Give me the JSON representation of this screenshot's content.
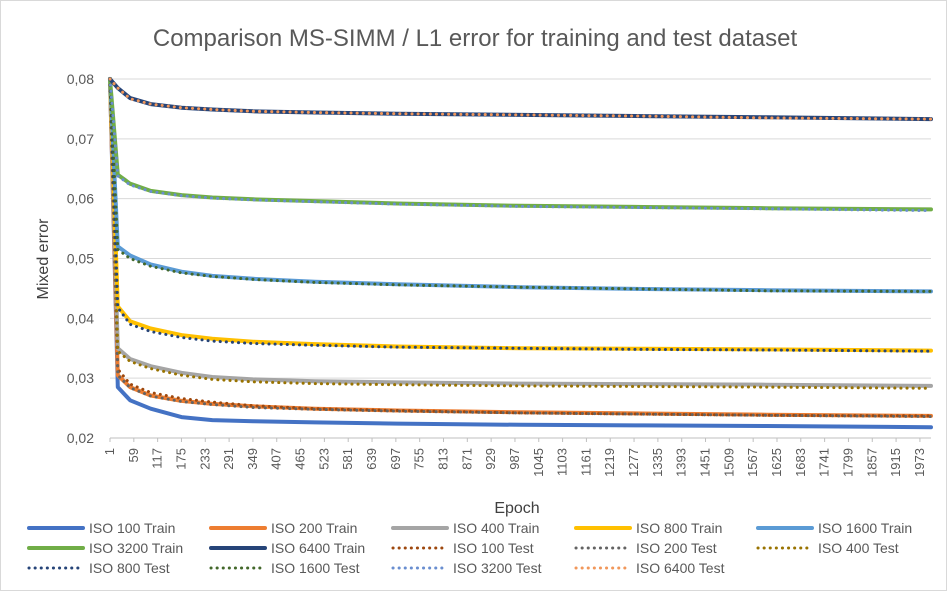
{
  "chart_data": {
    "type": "line",
    "title": "Comparison MS-SIMM / L1 error for training and test dataset",
    "xlabel": "Epoch",
    "ylabel": "Mixed error",
    "xlim": [
      1,
      2000
    ],
    "ylim": [
      0.02,
      0.08
    ],
    "y_ticks": [
      "0,02",
      "0,03",
      "0,04",
      "0,05",
      "0,06",
      "0,07",
      "0,08"
    ],
    "x_ticks": [
      "1",
      "59",
      "117",
      "175",
      "233",
      "291",
      "349",
      "407",
      "465",
      "523",
      "581",
      "639",
      "697",
      "755",
      "813",
      "871",
      "929",
      "987",
      "1045",
      "1103",
      "1161",
      "1219",
      "1277",
      "1335",
      "1393",
      "1451",
      "1509",
      "1567",
      "1625",
      "1683",
      "1741",
      "1799",
      "1857",
      "1915",
      "1973"
    ],
    "grid": "horizontal",
    "legend": "bottom",
    "series": [
      {
        "name": "ISO 100 Train",
        "color": "#4472C4",
        "style": "solid",
        "x": [
          1,
          20,
          50,
          100,
          175,
          250,
          350,
          500,
          700,
          1000,
          1300,
          1600,
          2000
        ],
        "values": [
          0.08,
          0.0285,
          0.0263,
          0.0249,
          0.0235,
          0.023,
          0.0228,
          0.0226,
          0.0224,
          0.0222,
          0.0221,
          0.022,
          0.0218
        ]
      },
      {
        "name": "ISO 200 Train",
        "color": "#ED7D31",
        "style": "solid",
        "x": [
          1,
          20,
          50,
          100,
          175,
          250,
          350,
          500,
          700,
          1000,
          1300,
          1600,
          2000
        ],
        "values": [
          0.08,
          0.0305,
          0.0285,
          0.0271,
          0.0262,
          0.0257,
          0.0253,
          0.0249,
          0.0246,
          0.0243,
          0.0241,
          0.0239,
          0.0237
        ]
      },
      {
        "name": "ISO 400 Train",
        "color": "#A5A5A5",
        "style": "solid",
        "x": [
          1,
          20,
          50,
          100,
          175,
          250,
          350,
          500,
          700,
          1000,
          1300,
          1600,
          2000
        ],
        "values": [
          0.08,
          0.035,
          0.0332,
          0.032,
          0.0309,
          0.0302,
          0.0298,
          0.0295,
          0.0293,
          0.0291,
          0.029,
          0.0289,
          0.0287
        ]
      },
      {
        "name": "ISO 800 Train",
        "color": "#FFC000",
        "style": "solid",
        "x": [
          1,
          20,
          50,
          100,
          175,
          250,
          350,
          500,
          700,
          1000,
          1300,
          1600,
          2000
        ],
        "values": [
          0.08,
          0.042,
          0.0395,
          0.0383,
          0.0372,
          0.0366,
          0.0361,
          0.0357,
          0.0353,
          0.035,
          0.0349,
          0.0348,
          0.0346
        ]
      },
      {
        "name": "ISO 1600 Train",
        "color": "#5B9BD5",
        "style": "solid",
        "x": [
          1,
          20,
          50,
          100,
          175,
          250,
          350,
          500,
          700,
          1000,
          1300,
          1600,
          2000
        ],
        "values": [
          0.08,
          0.052,
          0.0505,
          0.049,
          0.0478,
          0.0471,
          0.0466,
          0.0461,
          0.0457,
          0.0452,
          0.0449,
          0.0447,
          0.0445
        ]
      },
      {
        "name": "ISO 3200 Train",
        "color": "#70AD47",
        "style": "solid",
        "x": [
          1,
          20,
          50,
          100,
          175,
          250,
          350,
          500,
          700,
          1000,
          1300,
          1600,
          2000
        ],
        "values": [
          0.08,
          0.064,
          0.0625,
          0.0613,
          0.0606,
          0.0602,
          0.0599,
          0.0596,
          0.0592,
          0.0588,
          0.0586,
          0.0584,
          0.0582
        ]
      },
      {
        "name": "ISO 6400 Train",
        "color": "#264478",
        "style": "solid",
        "x": [
          1,
          20,
          50,
          100,
          175,
          250,
          350,
          500,
          700,
          1000,
          1300,
          1600,
          2000
        ],
        "values": [
          0.08,
          0.0785,
          0.0768,
          0.0758,
          0.0752,
          0.0749,
          0.0746,
          0.0744,
          0.0742,
          0.074,
          0.0738,
          0.0736,
          0.0733
        ]
      },
      {
        "name": "ISO 100 Test",
        "color": "#9E480E",
        "style": "dotted",
        "x": [
          1,
          20,
          50,
          100,
          175,
          250,
          350,
          500,
          700,
          1000,
          1300,
          1600,
          2000
        ],
        "values": [
          0.08,
          0.0315,
          0.029,
          0.0276,
          0.0266,
          0.026,
          0.0254,
          0.0249,
          0.0246,
          0.0242,
          0.024,
          0.0238,
          0.0237
        ]
      },
      {
        "name": "ISO 200 Test",
        "color": "#636363",
        "style": "dotted",
        "x": [
          1,
          20,
          50,
          100,
          175,
          250,
          350,
          500,
          700,
          1000,
          1300,
          1600,
          2000
        ],
        "values": [
          0.08,
          0.0305,
          0.0284,
          0.027,
          0.0261,
          0.0256,
          0.0251,
          0.0248,
          0.0245,
          0.0242,
          0.024,
          0.0238,
          0.0236
        ]
      },
      {
        "name": "ISO 400 Test",
        "color": "#997300",
        "style": "dotted",
        "x": [
          1,
          20,
          50,
          100,
          175,
          250,
          350,
          500,
          700,
          1000,
          1300,
          1600,
          2000
        ],
        "values": [
          0.08,
          0.0345,
          0.0328,
          0.0316,
          0.0305,
          0.0298,
          0.0294,
          0.0291,
          0.0289,
          0.0287,
          0.0286,
          0.0285,
          0.0283
        ]
      },
      {
        "name": "ISO 800 Test",
        "color": "#264478",
        "style": "dotted",
        "x": [
          1,
          20,
          50,
          100,
          175,
          250,
          350,
          500,
          700,
          1000,
          1300,
          1600,
          2000
        ],
        "values": [
          0.08,
          0.0418,
          0.039,
          0.0378,
          0.0368,
          0.0362,
          0.0358,
          0.0355,
          0.0352,
          0.035,
          0.0348,
          0.0347,
          0.0345
        ]
      },
      {
        "name": "ISO 1600 Test",
        "color": "#43682B",
        "style": "dotted",
        "x": [
          1,
          20,
          50,
          100,
          175,
          250,
          350,
          500,
          700,
          1000,
          1300,
          1600,
          2000
        ],
        "values": [
          0.08,
          0.0515,
          0.05,
          0.0487,
          0.0476,
          0.047,
          0.0465,
          0.046,
          0.0456,
          0.0452,
          0.0449,
          0.0446,
          0.0445
        ]
      },
      {
        "name": "ISO 3200 Test",
        "color": "#698ED0",
        "style": "dotted",
        "x": [
          1,
          20,
          50,
          100,
          175,
          250,
          350,
          500,
          700,
          1000,
          1300,
          1600,
          2000
        ],
        "values": [
          0.08,
          0.0638,
          0.0623,
          0.0612,
          0.0605,
          0.0601,
          0.0598,
          0.0595,
          0.0591,
          0.0587,
          0.0585,
          0.0583,
          0.058
        ]
      },
      {
        "name": "ISO 6400 Test",
        "color": "#F1975A",
        "style": "dotted",
        "x": [
          1,
          20,
          50,
          100,
          175,
          250,
          350,
          500,
          700,
          1000,
          1300,
          1600,
          2000
        ],
        "values": [
          0.08,
          0.0785,
          0.0767,
          0.0758,
          0.0752,
          0.0749,
          0.0746,
          0.0744,
          0.0742,
          0.074,
          0.0738,
          0.0735,
          0.0733
        ]
      }
    ]
  }
}
